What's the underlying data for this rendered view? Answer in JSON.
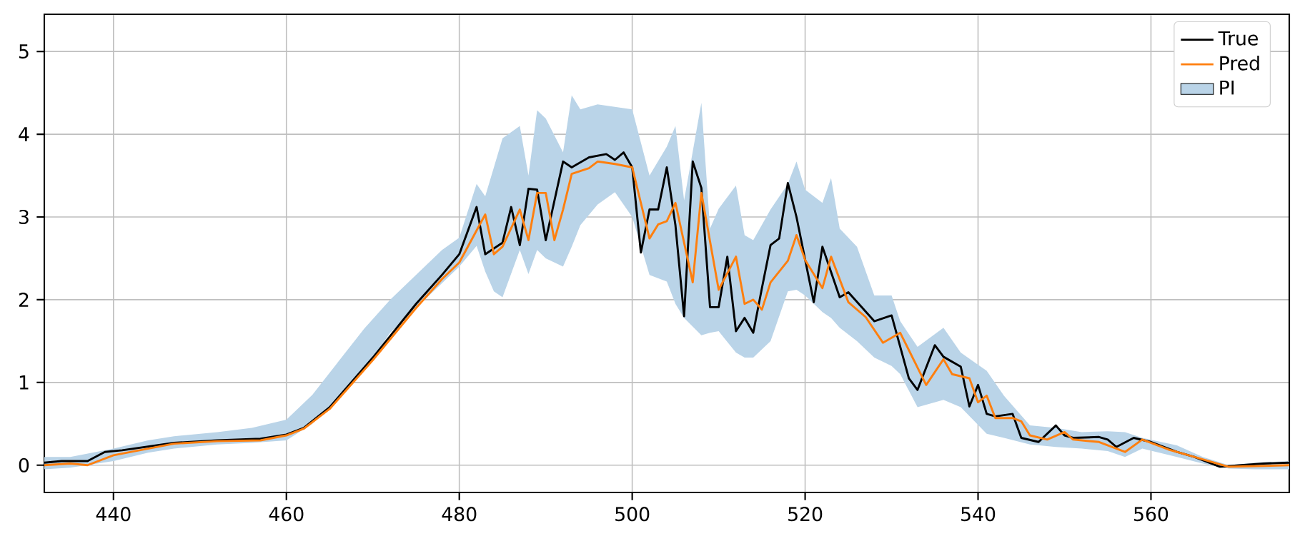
{
  "chart_data": {
    "type": "line",
    "xlim": [
      432,
      576
    ],
    "ylim": [
      -0.33,
      5.45
    ],
    "xticks": [
      440,
      460,
      480,
      500,
      520,
      540,
      560
    ],
    "yticks": [
      0,
      1,
      2,
      3,
      4,
      5
    ],
    "grid": true,
    "legend": "top right",
    "marker": "none",
    "line_style": "solid",
    "series": [
      {
        "name": "True",
        "color": "#000000",
        "x": [
          432,
          434,
          437,
          439,
          441,
          447,
          452,
          457,
          460,
          462,
          465,
          470,
          475,
          478,
          480,
          482,
          483,
          485,
          486,
          487,
          488,
          489,
          490,
          492,
          493,
          495,
          497,
          498,
          499,
          500,
          501,
          502,
          503,
          504,
          505,
          506,
          507,
          508,
          509,
          510,
          511,
          512,
          513,
          514,
          515,
          516,
          517,
          518,
          519,
          521,
          522,
          524,
          525,
          528,
          530,
          532,
          533,
          535,
          536,
          538,
          539,
          540,
          541,
          542,
          544,
          545,
          547,
          549,
          550,
          551,
          554,
          555,
          556,
          558,
          560,
          563,
          565,
          568,
          573,
          576
        ],
        "values": [
          0.03,
          0.05,
          0.05,
          0.16,
          0.18,
          0.27,
          0.3,
          0.32,
          0.37,
          0.45,
          0.7,
          1.3,
          1.95,
          2.3,
          2.55,
          3.12,
          2.55,
          2.69,
          3.12,
          2.66,
          3.34,
          3.33,
          2.72,
          3.67,
          3.6,
          3.72,
          3.76,
          3.69,
          3.78,
          3.6,
          2.57,
          3.09,
          3.09,
          3.6,
          2.9,
          1.8,
          3.67,
          3.35,
          1.91,
          1.91,
          2.52,
          1.62,
          1.78,
          1.6,
          2.14,
          2.66,
          2.74,
          3.41,
          3.0,
          1.97,
          2.64,
          2.03,
          2.09,
          1.74,
          1.81,
          1.05,
          0.91,
          1.45,
          1.31,
          1.19,
          0.71,
          0.97,
          0.62,
          0.59,
          0.62,
          0.33,
          0.28,
          0.48,
          0.36,
          0.33,
          0.34,
          0.31,
          0.22,
          0.33,
          0.28,
          0.16,
          0.1,
          -0.02,
          0.02,
          0.03
        ]
      },
      {
        "name": "Pred",
        "color": "#ff7f0e",
        "x": [
          432,
          435,
          437,
          440,
          447,
          452,
          457,
          460,
          462,
          465,
          470,
          475,
          478,
          480,
          483,
          484,
          485,
          487,
          488,
          489,
          490,
          491,
          492,
          493,
          495,
          496,
          498,
          500,
          502,
          503,
          504,
          505,
          507,
          508,
          510,
          512,
          513,
          514,
          515,
          516,
          518,
          519,
          520,
          522,
          523,
          525,
          527,
          529,
          531,
          534,
          536,
          537,
          539,
          540,
          541,
          542,
          544,
          545,
          546,
          548,
          550,
          551,
          554,
          557,
          559,
          562,
          565,
          569,
          576
        ],
        "values": [
          0.0,
          0.02,
          0.0,
          0.12,
          0.26,
          0.29,
          0.3,
          0.36,
          0.44,
          0.68,
          1.27,
          1.9,
          2.25,
          2.45,
          3.03,
          2.55,
          2.64,
          3.09,
          2.72,
          3.29,
          3.29,
          2.72,
          3.09,
          3.52,
          3.59,
          3.67,
          3.64,
          3.6,
          2.74,
          2.91,
          2.95,
          3.17,
          2.21,
          3.29,
          2.12,
          2.52,
          1.95,
          2.0,
          1.88,
          2.21,
          2.47,
          2.78,
          2.48,
          2.14,
          2.52,
          1.97,
          1.79,
          1.48,
          1.6,
          0.97,
          1.28,
          1.1,
          1.05,
          0.76,
          0.84,
          0.57,
          0.57,
          0.53,
          0.36,
          0.31,
          0.4,
          0.31,
          0.28,
          0.16,
          0.31,
          0.19,
          0.1,
          -0.02,
          0.0
        ]
      },
      {
        "name": "PI",
        "type": "area",
        "color": "#bad4e8",
        "x": [
          432,
          435,
          440,
          444,
          447,
          452,
          456,
          460,
          463,
          466,
          469,
          472,
          475,
          478,
          480,
          482,
          483,
          484,
          485,
          487,
          488,
          489,
          490,
          492,
          493,
          494,
          496,
          498,
          500,
          502,
          504,
          505,
          506,
          508,
          509,
          510,
          512,
          513,
          514,
          516,
          518,
          519,
          520,
          522,
          523,
          524,
          526,
          528,
          530,
          531,
          533,
          536,
          538,
          541,
          543,
          546,
          549,
          552,
          555,
          557,
          559,
          563,
          566,
          569,
          572,
          576
        ],
        "values": [
          null,
          null,
          null,
          null,
          null,
          null,
          null,
          null,
          null,
          null,
          null,
          null,
          null,
          null,
          null,
          null,
          null,
          null,
          null,
          null,
          null,
          null,
          null,
          null,
          null,
          null,
          null,
          null,
          null,
          null,
          null,
          null,
          null,
          null,
          null,
          null,
          null,
          null,
          null,
          null,
          null,
          null,
          null,
          null,
          null,
          null,
          null,
          null,
          null,
          null,
          null,
          null,
          null,
          null,
          null,
          null,
          null,
          null,
          null,
          null,
          null,
          null,
          null,
          null,
          null,
          null
        ],
        "upper": [
          0.1,
          0.1,
          0.2,
          0.3,
          0.35,
          0.4,
          0.45,
          0.55,
          0.85,
          1.25,
          1.65,
          2.0,
          2.3,
          2.6,
          2.75,
          3.4,
          3.25,
          3.6,
          3.95,
          4.1,
          3.5,
          4.29,
          4.19,
          3.78,
          4.47,
          4.3,
          4.36,
          4.33,
          4.3,
          3.5,
          3.85,
          4.1,
          3.2,
          4.38,
          2.86,
          3.1,
          3.38,
          2.78,
          2.72,
          3.09,
          3.4,
          3.67,
          3.33,
          3.17,
          3.47,
          2.86,
          2.64,
          2.05,
          2.05,
          1.74,
          1.43,
          1.66,
          1.36,
          1.14,
          0.84,
          0.48,
          0.45,
          0.4,
          0.41,
          0.4,
          0.33,
          0.24,
          0.1,
          0.0,
          0.03,
          0.05
        ],
        "lower": [
          -0.05,
          -0.03,
          0.05,
          0.15,
          0.2,
          0.25,
          0.27,
          0.3,
          0.5,
          0.8,
          1.15,
          1.6,
          1.9,
          2.2,
          2.4,
          2.65,
          2.34,
          2.1,
          2.03,
          2.6,
          2.31,
          2.6,
          2.5,
          2.4,
          2.64,
          2.9,
          3.15,
          3.3,
          3.0,
          2.3,
          2.22,
          1.95,
          1.78,
          1.57,
          1.6,
          1.62,
          1.36,
          1.3,
          1.3,
          1.5,
          2.1,
          2.12,
          2.05,
          1.85,
          1.78,
          1.66,
          1.5,
          1.3,
          1.2,
          1.1,
          0.7,
          0.79,
          0.7,
          0.38,
          0.33,
          0.25,
          0.22,
          0.2,
          0.17,
          0.1,
          0.2,
          0.1,
          0.02,
          -0.04,
          -0.05,
          -0.05
        ]
      }
    ]
  }
}
